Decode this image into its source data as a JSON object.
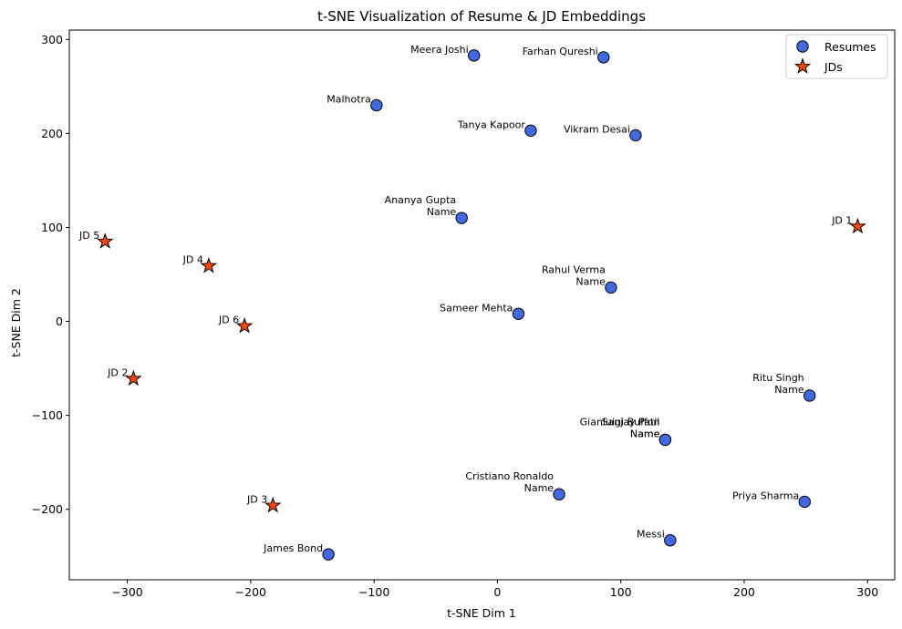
{
  "chart_data": {
    "type": "scatter",
    "title": "t-SNE Visualization of Resume & JD Embeddings",
    "xlabel": "t-SNE Dim 1",
    "ylabel": "t-SNE Dim 2",
    "xlim": [
      -347,
      322
    ],
    "ylim": [
      -275,
      310
    ],
    "xticks": [
      -300,
      -200,
      -100,
      0,
      100,
      200,
      300
    ],
    "yticks": [
      -200,
      -100,
      0,
      100,
      200,
      300
    ],
    "xtick_labels": [
      "−300",
      "−200",
      "−100",
      "0",
      "100",
      "200",
      "300"
    ],
    "ytick_labels": [
      "−200",
      "−100",
      "0",
      "100",
      "200",
      "300"
    ],
    "grid": false,
    "legend_position": "top-right",
    "colors": {
      "resumes": "#4169e1",
      "jds": "#ff4500",
      "edge": "#000000"
    },
    "series": [
      {
        "name": "Resumes",
        "marker": "circle",
        "points": [
          {
            "x": -19,
            "y": 283,
            "lines": [
              "Meera Joshi"
            ]
          },
          {
            "x": 86,
            "y": 281,
            "lines": [
              "Farhan Qureshi"
            ]
          },
          {
            "x": -98,
            "y": 230,
            "lines": [
              "Malhotra"
            ]
          },
          {
            "x": 27,
            "y": 203,
            "lines": [
              "Tanya Kapoor"
            ]
          },
          {
            "x": 112,
            "y": 198,
            "lines": [
              "Vikram Desai"
            ]
          },
          {
            "x": -29,
            "y": 110,
            "lines": [
              "Ananya Gupta",
              "Name"
            ]
          },
          {
            "x": 92,
            "y": 36,
            "lines": [
              "Rahul Verma",
              "Name"
            ]
          },
          {
            "x": 17,
            "y": 8,
            "lines": [
              "Sameer Mehta"
            ]
          },
          {
            "x": 253,
            "y": -79,
            "lines": [
              "Ritu Singh",
              "Name"
            ]
          },
          {
            "x": 136,
            "y": -126,
            "lines": [
              "Gianluigi Buffon",
              "Name"
            ]
          },
          {
            "x": 136,
            "y": -126,
            "lines": [
              "Sanjay Patil",
              "Name"
            ]
          },
          {
            "x": 50,
            "y": -184,
            "lines": [
              "Cristiano Ronaldo",
              "Name"
            ]
          },
          {
            "x": 249,
            "y": -192,
            "lines": [
              "Priya Sharma"
            ]
          },
          {
            "x": 140,
            "y": -233,
            "lines": [
              "Messi"
            ]
          },
          {
            "x": -137,
            "y": -248,
            "lines": [
              "James Bond"
            ]
          }
        ]
      },
      {
        "name": "JDs",
        "marker": "star",
        "points": [
          {
            "x": 292,
            "y": 101,
            "lines": [
              "JD 1"
            ]
          },
          {
            "x": -318,
            "y": 85,
            "lines": [
              "JD 5"
            ]
          },
          {
            "x": -234,
            "y": 59,
            "lines": [
              "JD 4"
            ]
          },
          {
            "x": -205,
            "y": -5,
            "lines": [
              "JD 6"
            ]
          },
          {
            "x": -295,
            "y": -61,
            "lines": [
              "JD 2"
            ]
          },
          {
            "x": -182,
            "y": -196,
            "lines": [
              "JD 3"
            ]
          }
        ]
      }
    ]
  }
}
